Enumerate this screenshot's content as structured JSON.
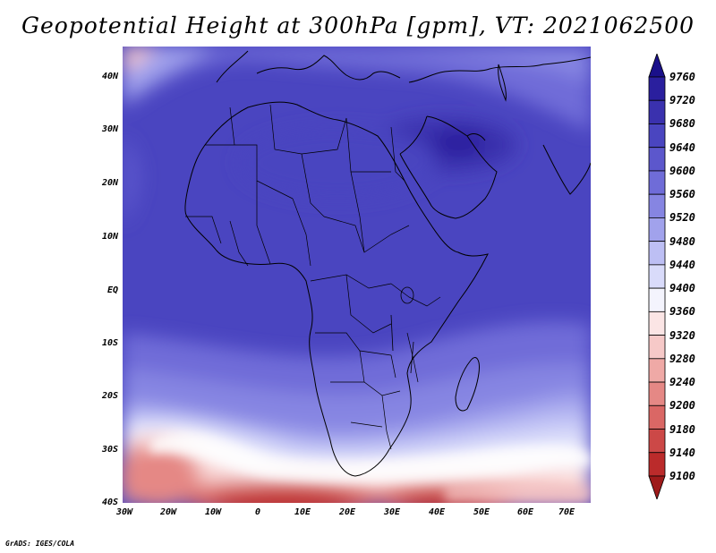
{
  "title": "Geopotential Height at 300hPa [gpm], VT: 2021062500",
  "credit": "GrADS: IGES/COLA",
  "map": {
    "variable": "Geopotential Height",
    "level": "300hPa",
    "units": "gpm",
    "valid_time": "2021062500",
    "region": "Africa",
    "lon_range": [
      -30,
      75
    ],
    "lat_range": [
      -40,
      45
    ],
    "lon_labels": [
      "30W",
      "20W",
      "10W",
      "0",
      "10E",
      "20E",
      "30E",
      "40E",
      "50E",
      "60E",
      "70E"
    ],
    "lat_labels": [
      "40N",
      "30N",
      "20N",
      "10N",
      "EQ",
      "10S",
      "20S",
      "30S",
      "40S"
    ]
  },
  "colorbar": {
    "labels": [
      "9760",
      "9720",
      "9680",
      "9640",
      "9600",
      "9560",
      "9520",
      "9480",
      "9440",
      "9400",
      "9360",
      "9320",
      "9280",
      "9240",
      "9200",
      "9180",
      "9140",
      "9100"
    ],
    "colors": [
      "#1a108a",
      "#2a1f9e",
      "#3a31ae",
      "#4a45c0",
      "#5c57cc",
      "#6f6cd8",
      "#8685e2",
      "#a1a2ec",
      "#bdbff4",
      "#d9dbfa",
      "#f4f4fd",
      "#fbe5e5",
      "#f6c9c8",
      "#efa9a6",
      "#e58885",
      "#da6765",
      "#cc4847",
      "#bb2b2b",
      "#9e1a1a"
    ]
  }
}
